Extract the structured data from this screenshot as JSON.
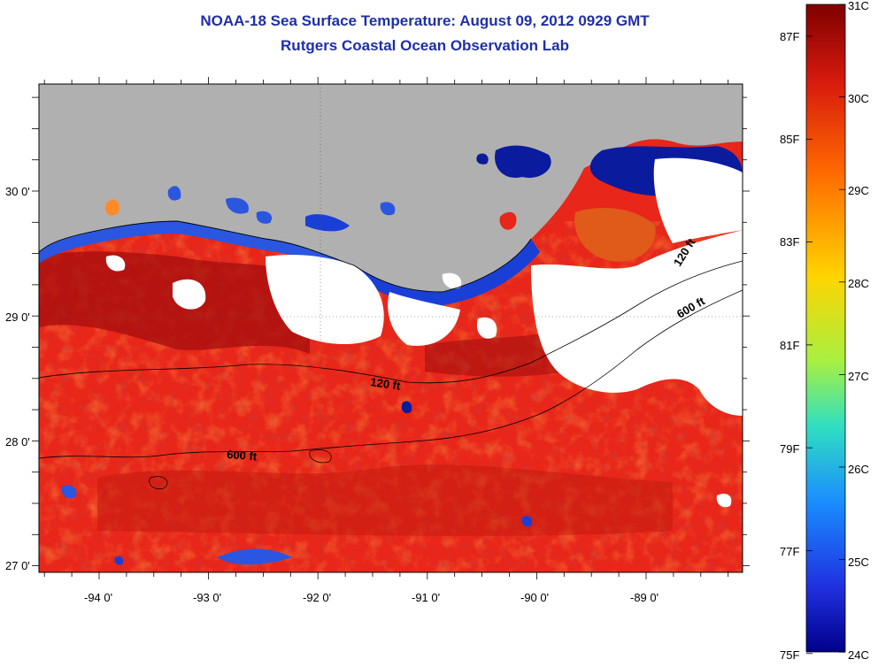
{
  "header": {
    "title": "NOAA-18 Sea Surface Temperature:  August 09, 2012 0929 GMT",
    "subtitle": "Rutgers Coastal Ocean Observation Lab"
  },
  "map": {
    "lat_labels": [
      "30 0'",
      "29 0'",
      "28 0'",
      "27 0'"
    ],
    "lon_labels": [
      "-94 0'",
      "-93 0'",
      "-92 0'",
      "-91 0'",
      "-90 0'",
      "-89 0'"
    ],
    "contours": [
      "120 ft",
      "600 ft",
      "120 ft",
      "600 ft"
    ],
    "colors": {
      "land": "#b0b0b0",
      "cloud": "#ffffff",
      "sea_warm": "#e8261a",
      "sea_hot": "#a40d0d",
      "near_shore_cool": "#1a3fd6",
      "very_cool": "#0b1b9e"
    }
  },
  "colorbar": {
    "fahrenheit_labels": [
      "87F",
      "85F",
      "83F",
      "81F",
      "79F",
      "77F",
      "75F"
    ],
    "celsius_labels": [
      "31C",
      "30C",
      "29C",
      "28C",
      "27C",
      "26C",
      "25C",
      "24C"
    ],
    "gradient": [
      "#7f0000",
      "#d71a0e",
      "#ff6a00",
      "#ffd400",
      "#a8f040",
      "#30e0c0",
      "#1a8cff",
      "#2030e0",
      "#00008a"
    ]
  }
}
